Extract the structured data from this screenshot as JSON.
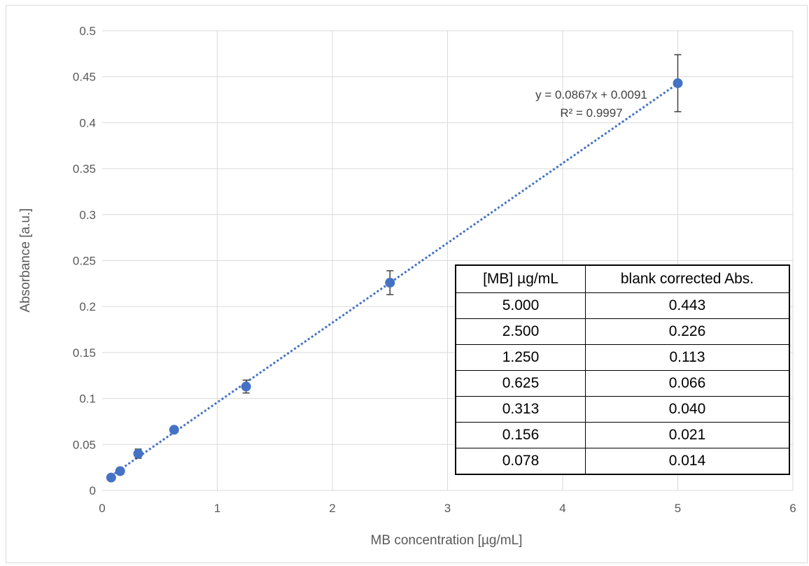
{
  "chart_data": {
    "type": "scatter",
    "xlabel": "MB concentration [µg/mL]",
    "ylabel": "Absorbance [a.u.]",
    "xlim": [
      0,
      6
    ],
    "ylim": [
      0,
      0.5
    ],
    "x_ticks": [
      "0",
      "1",
      "2",
      "3",
      "4",
      "5",
      "6"
    ],
    "y_ticks": [
      "0",
      "0.05",
      "0.1",
      "0.15",
      "0.2",
      "0.25",
      "0.3",
      "0.35",
      "0.4",
      "0.45",
      "0.5"
    ],
    "grid": true,
    "legend": "none",
    "series": [
      {
        "x": [
          0.078,
          0.156,
          0.313,
          0.625,
          1.25,
          2.5,
          5.0
        ],
        "y": [
          0.014,
          0.021,
          0.04,
          0.066,
          0.113,
          0.226,
          0.443
        ],
        "error": [
          0.002,
          0.003,
          0.005,
          0.003,
          0.007,
          0.013,
          0.031
        ],
        "color": "#4472c4"
      }
    ],
    "trendline": {
      "type": "linear",
      "slope": 0.0867,
      "intercept": 0.0091,
      "equation": "y = 0.0867x + 0.0091",
      "r_squared": "R² = 0.9997",
      "color": "#4472c4"
    },
    "table": {
      "headers": [
        "[MB] µg/mL",
        "blank corrected Abs."
      ],
      "rows": [
        [
          "5.000",
          "0.443"
        ],
        [
          "2.500",
          "0.226"
        ],
        [
          "1.250",
          "0.113"
        ],
        [
          "0.625",
          "0.066"
        ],
        [
          "0.313",
          "0.040"
        ],
        [
          "0.156",
          "0.021"
        ],
        [
          "0.078",
          "0.014"
        ]
      ]
    }
  }
}
